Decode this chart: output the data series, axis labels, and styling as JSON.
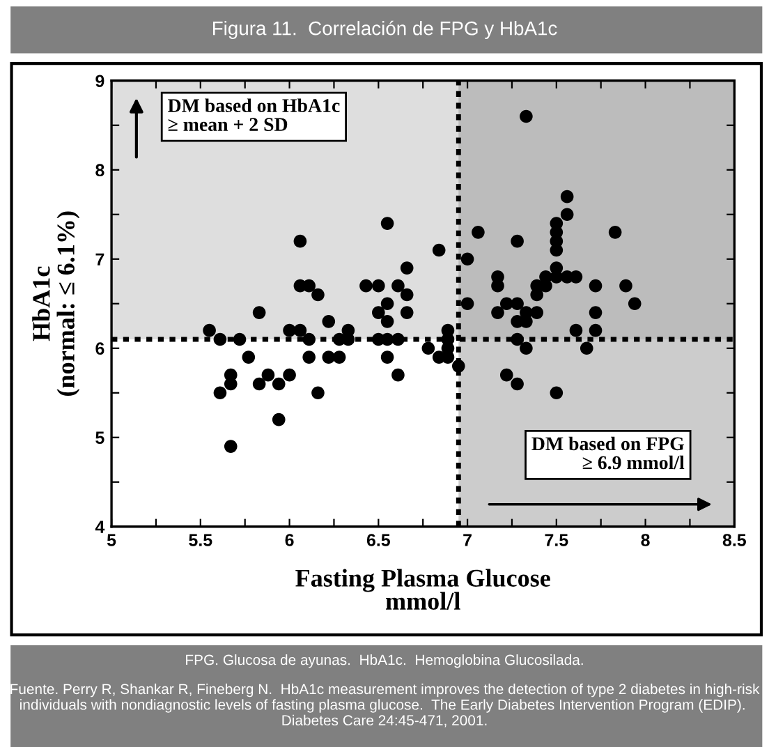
{
  "chart_data": {
    "type": "scatter",
    "title": "Figura 11.  Correlación de FPG y HbA1c",
    "xlabel": "Fasting Plasma Glucose\nmmol/l",
    "ylabel": "HbA1c\n(normal: ≤ 6.1%)",
    "xlim": [
      5,
      8.5
    ],
    "ylim": [
      4,
      9
    ],
    "xticks": [
      5,
      {
        "value": 5.25,
        "label": null
      },
      5.5,
      {
        "value": 5.75,
        "label": null
      },
      6,
      {
        "value": 6.25,
        "label": null
      },
      6.5,
      {
        "value": 6.75,
        "label": null
      },
      7,
      {
        "value": 7.25,
        "label": null
      },
      7.5,
      {
        "value": 7.75,
        "label": null
      },
      8,
      {
        "value": 8.25,
        "label": null
      },
      8.5
    ],
    "yticks": [
      4,
      {
        "value": 4.5,
        "label": null
      },
      5,
      {
        "value": 5.5,
        "label": null
      },
      6,
      {
        "value": 6.5,
        "label": null
      },
      7,
      {
        "value": 7.5,
        "label": null
      },
      8,
      {
        "value": 8.5,
        "label": null
      },
      9
    ],
    "grid": false,
    "marker": "circle",
    "series": [
      {
        "color": "#000000",
        "x": [
          5.55,
          5.61,
          5.61,
          5.67,
          5.67,
          5.67,
          5.72,
          5.77,
          5.83,
          5.83,
          5.88,
          5.94,
          5.94,
          6.0,
          6.0,
          6.06,
          6.06,
          6.06,
          6.11,
          6.11,
          6.11,
          6.16,
          6.16,
          6.22,
          6.22,
          6.28,
          6.28,
          6.33,
          6.33,
          6.43,
          6.5,
          6.5,
          6.5,
          6.55,
          6.55,
          6.55,
          6.55,
          6.55,
          6.61,
          6.61,
          6.61,
          6.66,
          6.66,
          6.66,
          6.84,
          6.78,
          6.84,
          6.89,
          6.89,
          6.89,
          6.89,
          6.95,
          7.0,
          7.0,
          7.06,
          7.17,
          7.17,
          7.17,
          7.22,
          7.22,
          7.28,
          7.28,
          7.28,
          7.28,
          7.28,
          7.33,
          7.33,
          7.33,
          7.33,
          7.39,
          7.39,
          7.39,
          7.44,
          7.44,
          7.5,
          7.5,
          7.5,
          7.5,
          7.5,
          7.5,
          7.5,
          7.56,
          7.56,
          7.56,
          7.61,
          7.61,
          7.67,
          7.72,
          7.72,
          7.72,
          7.83,
          7.89,
          7.94
        ],
        "values": [
          6.2,
          6.1,
          5.5,
          5.7,
          5.6,
          4.9,
          6.1,
          5.9,
          6.4,
          5.6,
          5.7,
          5.6,
          5.2,
          5.7,
          6.2,
          6.2,
          7.2,
          6.7,
          6.7,
          6.1,
          5.9,
          6.6,
          5.5,
          6.3,
          5.9,
          5.9,
          6.1,
          6.2,
          6.1,
          6.7,
          6.7,
          6.4,
          6.1,
          7.4,
          6.5,
          6.3,
          6.1,
          5.9,
          6.7,
          6.1,
          5.7,
          6.9,
          6.6,
          6.4,
          7.1,
          6.0,
          5.9,
          6.2,
          6.1,
          6.0,
          5.9,
          5.8,
          7.0,
          6.5,
          7.3,
          6.8,
          6.7,
          6.4,
          6.5,
          5.7,
          7.2,
          6.5,
          6.3,
          6.1,
          5.6,
          8.6,
          6.4,
          6.3,
          6.0,
          6.7,
          6.6,
          6.4,
          6.8,
          6.7,
          7.4,
          7.3,
          7.2,
          7.1,
          6.9,
          6.8,
          5.5,
          7.7,
          7.5,
          6.8,
          6.8,
          6.2,
          6.0,
          6.7,
          6.4,
          6.2,
          7.3,
          6.7,
          6.5
        ]
      }
    ],
    "ref_lines": [
      {
        "axis": "x",
        "value": 6.95,
        "color": "#000000",
        "line_style": "dotted"
      },
      {
        "axis": "y",
        "value": 6.1,
        "color": "#000000",
        "line_style": "dotted"
      }
    ],
    "bands": [
      {
        "axis": "y",
        "from": 6.1,
        "to": 9,
        "label": "DM based on HbA1c\n≥ mean + 2 SD",
        "color": "#bdbdbd"
      },
      {
        "axis": "x",
        "from": 6.95,
        "to": 8.5,
        "label": "DM based on FPG\n≥ 6.9 mmol/l",
        "color": "#9a9a9a"
      }
    ],
    "annotations": [
      "FPG. Glucosa de ayunas.  HbA1c.  Hemoglobina Glucosilada.",
      "Fuente. Perry R, Shankar R, Fineberg N.  HbA1c measurement improves the detection of type 2 diabetes in high-risk individuals with nondiagnostic levels of fasting plasma glucose.  The Early Diabetes Intervention Program (EDIP).  Diabetes Care 24:45-471, 2001."
    ]
  }
}
